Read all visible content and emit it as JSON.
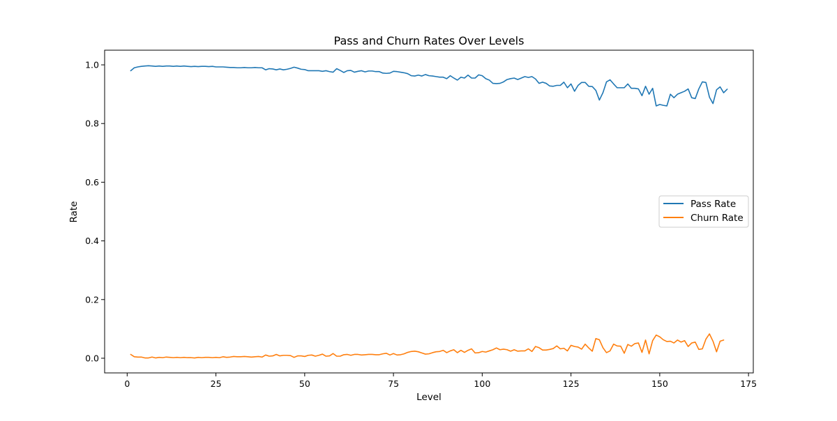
{
  "chart_data": {
    "type": "line",
    "title": "Pass and Churn Rates Over Levels",
    "xlabel": "Level",
    "ylabel": "Rate",
    "xlim": [
      -6.35,
      176.35
    ],
    "ylim": [
      -0.05,
      1.05
    ],
    "xticks": [
      0,
      25,
      50,
      75,
      100,
      125,
      150,
      175
    ],
    "yticks": [
      0.0,
      0.2,
      0.4,
      0.6,
      0.8,
      1.0
    ],
    "grid": false,
    "legend": "center-right",
    "series": [
      {
        "name": "Pass Rate",
        "color": "#1f77b4",
        "x_start": 1,
        "values": [
          0.98,
          0.99,
          0.993,
          0.995,
          0.996,
          0.997,
          0.996,
          0.995,
          0.996,
          0.995,
          0.996,
          0.996,
          0.995,
          0.996,
          0.995,
          0.996,
          0.995,
          0.994,
          0.995,
          0.994,
          0.995,
          0.995,
          0.994,
          0.995,
          0.993,
          0.993,
          0.993,
          0.992,
          0.991,
          0.991,
          0.99,
          0.99,
          0.991,
          0.99,
          0.99,
          0.991,
          0.99,
          0.99,
          0.983,
          0.987,
          0.986,
          0.983,
          0.986,
          0.983,
          0.985,
          0.988,
          0.992,
          0.989,
          0.985,
          0.984,
          0.98,
          0.98,
          0.98,
          0.98,
          0.978,
          0.98,
          0.977,
          0.975,
          0.987,
          0.981,
          0.974,
          0.98,
          0.981,
          0.975,
          0.978,
          0.98,
          0.976,
          0.979,
          0.979,
          0.977,
          0.977,
          0.972,
          0.971,
          0.972,
          0.978,
          0.977,
          0.975,
          0.973,
          0.97,
          0.963,
          0.962,
          0.965,
          0.962,
          0.967,
          0.963,
          0.962,
          0.96,
          0.958,
          0.958,
          0.953,
          0.963,
          0.955,
          0.948,
          0.958,
          0.955,
          0.965,
          0.955,
          0.955,
          0.966,
          0.963,
          0.953,
          0.948,
          0.937,
          0.936,
          0.937,
          0.942,
          0.95,
          0.953,
          0.955,
          0.95,
          0.955,
          0.96,
          0.957,
          0.96,
          0.952,
          0.937,
          0.941,
          0.937,
          0.928,
          0.927,
          0.93,
          0.93,
          0.941,
          0.922,
          0.935,
          0.91,
          0.93,
          0.94,
          0.94,
          0.927,
          0.926,
          0.913,
          0.88,
          0.905,
          0.942,
          0.949,
          0.935,
          0.922,
          0.922,
          0.922,
          0.935,
          0.92,
          0.92,
          0.918,
          0.895,
          0.927,
          0.9,
          0.92,
          0.86,
          0.865,
          0.862,
          0.86,
          0.9,
          0.888,
          0.9,
          0.905,
          0.91,
          0.918,
          0.888,
          0.885,
          0.918,
          0.942,
          0.94,
          0.89,
          0.868,
          0.915,
          0.925,
          0.905,
          0.917
        ]
      },
      {
        "name": "Churn Rate",
        "color": "#ff7f0e",
        "x_start": 1,
        "values": [
          0.013,
          0.005,
          0.004,
          0.004,
          0.001,
          0.001,
          0.004,
          0.001,
          0.003,
          0.002,
          0.004,
          0.003,
          0.002,
          0.003,
          0.002,
          0.003,
          0.002,
          0.002,
          0.001,
          0.003,
          0.002,
          0.003,
          0.003,
          0.002,
          0.003,
          0.002,
          0.005,
          0.003,
          0.004,
          0.006,
          0.005,
          0.005,
          0.006,
          0.005,
          0.004,
          0.005,
          0.006,
          0.004,
          0.011,
          0.007,
          0.008,
          0.013,
          0.008,
          0.01,
          0.01,
          0.009,
          0.003,
          0.008,
          0.008,
          0.006,
          0.01,
          0.011,
          0.007,
          0.01,
          0.014,
          0.007,
          0.008,
          0.016,
          0.007,
          0.007,
          0.012,
          0.013,
          0.01,
          0.013,
          0.013,
          0.011,
          0.012,
          0.013,
          0.013,
          0.012,
          0.012,
          0.015,
          0.017,
          0.011,
          0.016,
          0.011,
          0.012,
          0.015,
          0.02,
          0.023,
          0.024,
          0.022,
          0.018,
          0.014,
          0.015,
          0.019,
          0.022,
          0.023,
          0.027,
          0.019,
          0.025,
          0.029,
          0.019,
          0.027,
          0.02,
          0.027,
          0.032,
          0.018,
          0.019,
          0.023,
          0.021,
          0.025,
          0.029,
          0.035,
          0.029,
          0.031,
          0.029,
          0.024,
          0.029,
          0.024,
          0.025,
          0.025,
          0.032,
          0.023,
          0.04,
          0.036,
          0.028,
          0.028,
          0.03,
          0.033,
          0.042,
          0.032,
          0.034,
          0.025,
          0.044,
          0.04,
          0.038,
          0.031,
          0.048,
          0.035,
          0.024,
          0.067,
          0.063,
          0.036,
          0.019,
          0.025,
          0.048,
          0.042,
          0.041,
          0.017,
          0.047,
          0.041,
          0.05,
          0.052,
          0.02,
          0.062,
          0.015,
          0.06,
          0.079,
          0.073,
          0.063,
          0.057,
          0.058,
          0.052,
          0.062,
          0.055,
          0.06,
          0.04,
          0.052,
          0.055,
          0.03,
          0.032,
          0.065,
          0.083,
          0.058,
          0.022,
          0.058,
          0.062
        ]
      }
    ]
  }
}
